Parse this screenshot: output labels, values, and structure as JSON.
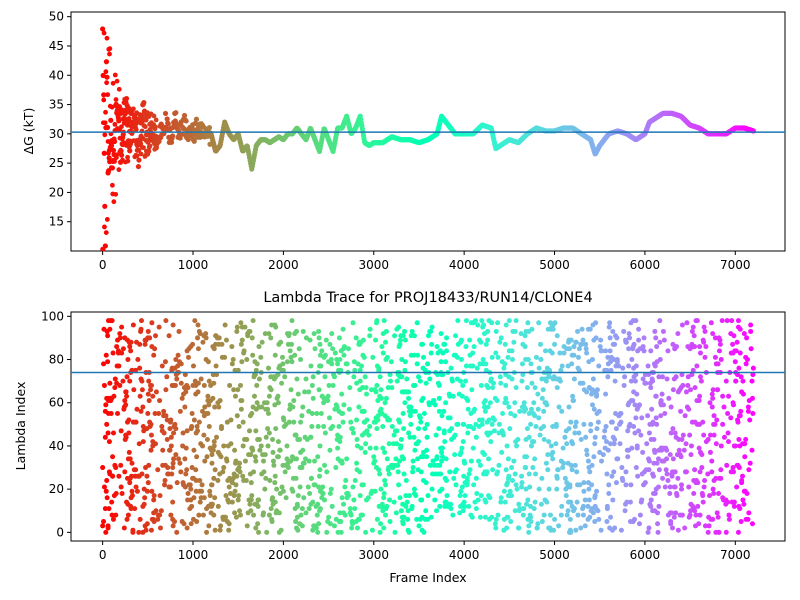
{
  "chart_data": [
    {
      "type": "scatter",
      "ylabel": "ΔG (kT)",
      "xlim": [
        -350,
        7550
      ],
      "ylim": [
        10,
        50.8
      ],
      "xticks": [
        0,
        1000,
        2000,
        3000,
        4000,
        5000,
        6000,
        7000
      ],
      "yticks": [
        15,
        20,
        25,
        30,
        35,
        40,
        45,
        50
      ],
      "hline": 30.3,
      "colormap": "rainbow (red at frame 0 → violet at last frame)",
      "n_frames": 7200,
      "series_points": [
        [
          0,
          49.2
        ],
        [
          5,
          40
        ],
        [
          10,
          38
        ],
        [
          15,
          34
        ],
        [
          20,
          21
        ],
        [
          25,
          17
        ],
        [
          30,
          11
        ],
        [
          40,
          44
        ],
        [
          50,
          38
        ],
        [
          60,
          24
        ],
        [
          75,
          26
        ],
        [
          90,
          31
        ],
        [
          110,
          25
        ],
        [
          130,
          29
        ],
        [
          150,
          36
        ],
        [
          175,
          33
        ],
        [
          200,
          26
        ],
        [
          230,
          31
        ],
        [
          260,
          36
        ],
        [
          300,
          28
        ],
        [
          350,
          33
        ],
        [
          400,
          25
        ],
        [
          450,
          35
        ],
        [
          500,
          28
        ],
        [
          550,
          31
        ],
        [
          600,
          28
        ],
        [
          650,
          31
        ],
        [
          700,
          32
        ],
        [
          750,
          29
        ],
        [
          800,
          33
        ],
        [
          850,
          30
        ],
        [
          900,
          32
        ],
        [
          950,
          30
        ],
        [
          1000,
          30
        ],
        [
          1050,
          31
        ],
        [
          1100,
          30
        ],
        [
          1150,
          29.5
        ],
        [
          1200,
          30
        ],
        [
          1250,
          27
        ],
        [
          1300,
          28
        ],
        [
          1350,
          32
        ],
        [
          1400,
          30
        ],
        [
          1450,
          29
        ],
        [
          1500,
          30
        ],
        [
          1550,
          27
        ],
        [
          1600,
          28
        ],
        [
          1650,
          24
        ],
        [
          1700,
          28
        ],
        [
          1750,
          29
        ],
        [
          1800,
          29
        ],
        [
          1850,
          28.5
        ],
        [
          1900,
          29
        ],
        [
          1950,
          29.5
        ],
        [
          2000,
          29
        ],
        [
          2050,
          30
        ],
        [
          2100,
          30
        ],
        [
          2150,
          31
        ],
        [
          2200,
          30
        ],
        [
          2250,
          29
        ],
        [
          2300,
          31
        ],
        [
          2350,
          29
        ],
        [
          2400,
          27
        ],
        [
          2450,
          31
        ],
        [
          2500,
          29
        ],
        [
          2550,
          27
        ],
        [
          2600,
          31
        ],
        [
          2650,
          31
        ],
        [
          2700,
          33
        ],
        [
          2750,
          30
        ],
        [
          2800,
          31
        ],
        [
          2850,
          33
        ],
        [
          2900,
          28.5
        ],
        [
          2950,
          28
        ],
        [
          3000,
          28.5
        ],
        [
          3100,
          28.5
        ],
        [
          3200,
          29.5
        ],
        [
          3300,
          29
        ],
        [
          3400,
          29
        ],
        [
          3500,
          28.5
        ],
        [
          3600,
          29
        ],
        [
          3700,
          30
        ],
        [
          3750,
          33
        ],
        [
          3800,
          32
        ],
        [
          3900,
          30
        ],
        [
          4000,
          30
        ],
        [
          4100,
          30
        ],
        [
          4200,
          31.5
        ],
        [
          4300,
          31
        ],
        [
          4350,
          27.5
        ],
        [
          4400,
          28
        ],
        [
          4500,
          29
        ],
        [
          4600,
          28.5
        ],
        [
          4700,
          30
        ],
        [
          4800,
          31
        ],
        [
          4900,
          30.5
        ],
        [
          5000,
          30.5
        ],
        [
          5100,
          31
        ],
        [
          5200,
          31
        ],
        [
          5300,
          30
        ],
        [
          5400,
          29
        ],
        [
          5450,
          26.5
        ],
        [
          5500,
          28
        ],
        [
          5600,
          30
        ],
        [
          5700,
          30.5
        ],
        [
          5800,
          30
        ],
        [
          5900,
          29
        ],
        [
          6000,
          30
        ],
        [
          6050,
          32
        ],
        [
          6200,
          33.5
        ],
        [
          6300,
          33.5
        ],
        [
          6400,
          33
        ],
        [
          6500,
          31.5
        ],
        [
          6600,
          31
        ],
        [
          6700,
          30
        ],
        [
          6800,
          30
        ],
        [
          6900,
          30
        ],
        [
          7000,
          31
        ],
        [
          7100,
          31
        ],
        [
          7200,
          30.5
        ]
      ]
    },
    {
      "type": "scatter",
      "title": "Lambda Trace for PROJ18433/RUN14/CLONE4",
      "xlabel": "Frame Index",
      "ylabel": "Lambda Index",
      "xlim": [
        -350,
        7550
      ],
      "ylim": [
        -4,
        102
      ],
      "xticks": [
        0,
        1000,
        2000,
        3000,
        4000,
        5000,
        6000,
        7000
      ],
      "yticks": [
        0,
        20,
        40,
        60,
        80,
        100
      ],
      "hline": 74,
      "colormap": "rainbow (red at frame 0 → violet at last frame)",
      "n_frames": 7200,
      "value_range": [
        0,
        99
      ]
    }
  ]
}
